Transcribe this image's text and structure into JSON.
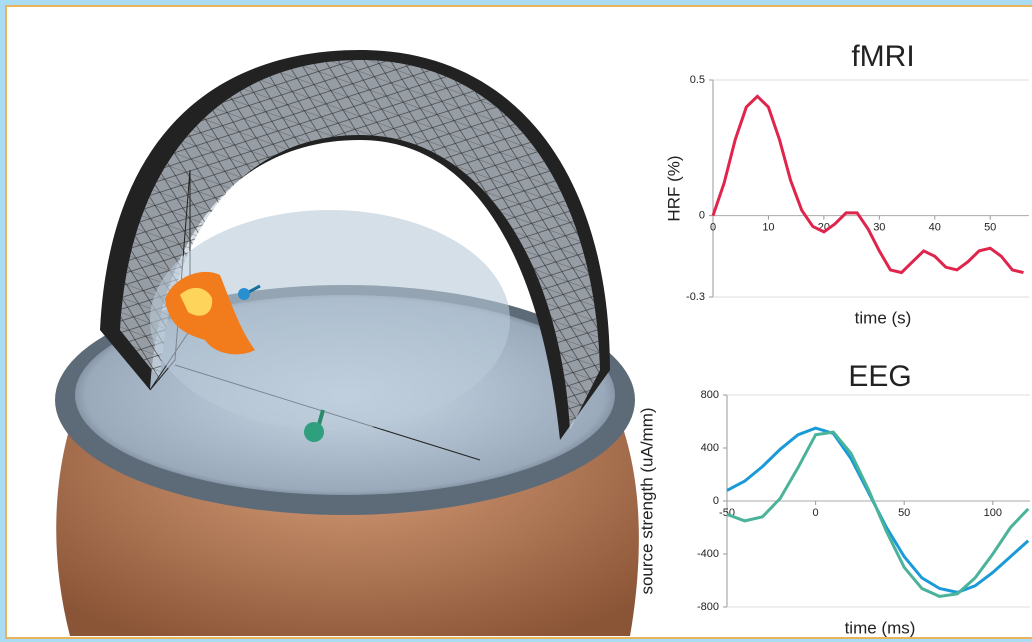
{
  "chart_data": [
    {
      "type": "line",
      "title": "fMRI",
      "y_label": "HRF (%)",
      "x_label": "time (s)",
      "x": [
        0,
        2,
        4,
        6,
        8,
        10,
        12,
        14,
        16,
        18,
        20,
        22,
        24,
        26,
        28,
        30,
        32,
        34,
        36,
        38,
        40,
        42,
        44,
        46,
        48,
        50,
        52,
        54,
        56
      ],
      "series": [
        {
          "color": "#e0244c",
          "values": [
            0,
            0.12,
            0.28,
            0.4,
            0.44,
            0.4,
            0.28,
            0.13,
            0.02,
            -0.04,
            -0.06,
            -0.03,
            0.01,
            0.01,
            -0.05,
            -0.13,
            -0.2,
            -0.21,
            -0.17,
            -0.13,
            -0.15,
            -0.19,
            -0.2,
            -0.17,
            -0.13,
            -0.12,
            -0.15,
            -0.2,
            -0.21
          ]
        }
      ],
      "xlim": [
        0,
        57
      ],
      "xticks": [
        0,
        10,
        20,
        30,
        40,
        50
      ],
      "ylim": [
        -0.3,
        0.5
      ],
      "yticks": [
        -0.3,
        0,
        0.5
      ]
    },
    {
      "type": "line",
      "title": "EEG",
      "y_label": "source strength (uA/mm)",
      "x_label": "time (ms)",
      "x": [
        -50,
        -40,
        -30,
        -20,
        -10,
        0,
        10,
        20,
        30,
        40,
        50,
        60,
        70,
        80,
        90,
        100,
        110,
        120
      ],
      "series": [
        {
          "color": "#1a9bd7",
          "values": [
            80,
            150,
            260,
            390,
            500,
            550,
            510,
            320,
            60,
            -200,
            -420,
            -580,
            -660,
            -690,
            -640,
            -540,
            -420,
            -300
          ]
        },
        {
          "color": "#4bb39a",
          "values": [
            -100,
            -150,
            -120,
            20,
            250,
            500,
            520,
            360,
            80,
            -230,
            -500,
            -660,
            -720,
            -700,
            -580,
            -400,
            -200,
            -60
          ]
        }
      ],
      "xlim": [
        -50,
        121
      ],
      "xticks": [
        -50,
        0,
        50,
        100
      ],
      "ylim": [
        -800,
        800
      ],
      "yticks": [
        -800,
        -400,
        0,
        400,
        800
      ]
    }
  ]
}
